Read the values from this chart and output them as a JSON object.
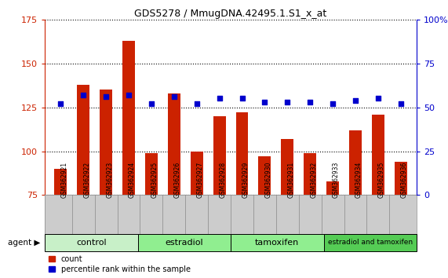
{
  "title": "GDS5278 / MmugDNA.42495.1.S1_x_at",
  "samples": [
    "GSM362921",
    "GSM362922",
    "GSM362923",
    "GSM362924",
    "GSM362925",
    "GSM362926",
    "GSM362927",
    "GSM362928",
    "GSM362929",
    "GSM362930",
    "GSM362931",
    "GSM362932",
    "GSM362933",
    "GSM362934",
    "GSM362935",
    "GSM362936"
  ],
  "counts": [
    90,
    138,
    135,
    163,
    99,
    133,
    100,
    120,
    122,
    97,
    107,
    99,
    83,
    112,
    121,
    94
  ],
  "percentiles": [
    52,
    57,
    56,
    57,
    52,
    56,
    52,
    55,
    55,
    53,
    53,
    53,
    52,
    54,
    55,
    52
  ],
  "groups": [
    {
      "label": "control",
      "start": 0,
      "end": 4,
      "color": "#c8f0c8"
    },
    {
      "label": "estradiol",
      "start": 4,
      "end": 8,
      "color": "#90ee90"
    },
    {
      "label": "tamoxifen",
      "start": 8,
      "end": 12,
      "color": "#90ee90"
    },
    {
      "label": "estradiol and tamoxifen",
      "start": 12,
      "end": 16,
      "color": "#55cc55"
    }
  ],
  "bar_color": "#cc2200",
  "dot_color": "#0000cc",
  "ylim_left": [
    75,
    175
  ],
  "ylim_right": [
    0,
    100
  ],
  "yticks_left": [
    75,
    100,
    125,
    150,
    175
  ],
  "yticks_right": [
    0,
    25,
    50,
    75,
    100
  ],
  "background_color": "#ffffff",
  "grid_color": "#000000",
  "tick_bg_color": "#cccccc",
  "agent_label": "agent",
  "legend_count": "count",
  "legend_pct": "percentile rank within the sample"
}
